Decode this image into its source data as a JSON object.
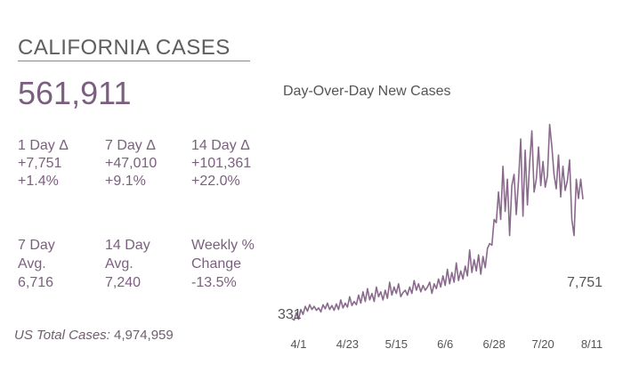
{
  "header": {
    "title": "CALIFORNIA CASES",
    "total_cases": "561,911"
  },
  "stats": {
    "day1": {
      "label": "1 Day Δ",
      "change": "+7,751",
      "pct": "+1.4%"
    },
    "day7": {
      "label": "7 Day Δ",
      "change": "+47,010",
      "pct": "+9.1%"
    },
    "day14": {
      "label": "14 Day Δ",
      "change": "+101,361",
      "pct": "+22.0%"
    },
    "avg7": {
      "label_line1": "7 Day",
      "label_line2": "Avg.",
      "value": "6,716"
    },
    "avg14": {
      "label_line1": "14 Day",
      "label_line2": "Avg.",
      "value": "7,240"
    },
    "weekly": {
      "label_line1": "Weekly %",
      "label_line2": "Change",
      "value": "-13.5%"
    }
  },
  "us_total": {
    "label": "US Total Cases:",
    "value": "4,974,959"
  },
  "colors": {
    "accent": "#7c5f80",
    "line": "#8a6a8c"
  },
  "chart_data": {
    "type": "line",
    "title": "Day-Over-Day New Cases",
    "x_ticks": [
      "4/1",
      "4/23",
      "5/15",
      "6/6",
      "6/28",
      "7/20",
      "8/11"
    ],
    "start_label": "331",
    "end_label": "7,751",
    "x_range": [
      "3/29",
      "8/11"
    ],
    "y_range": [
      0,
      12500
    ],
    "series": [
      {
        "values": [
          331,
          250,
          700,
          300,
          900,
          600,
          1100,
          800,
          1200,
          900,
          1100,
          850,
          1000,
          750,
          1200,
          950,
          1300,
          900,
          1150,
          850,
          1250,
          900,
          1500,
          1000,
          1300,
          1050,
          1700,
          1150,
          1400,
          1200,
          1800,
          1300,
          2000,
          1400,
          2200,
          1500,
          1900,
          1400,
          2300,
          1700,
          2000,
          1500,
          2100,
          1600,
          2600,
          1800,
          2300,
          1900,
          2500,
          1700,
          1950,
          2100,
          1800,
          2300,
          1900,
          2700,
          2100,
          2500,
          2000,
          2400,
          2100,
          2300,
          2600,
          1900,
          2500,
          2200,
          2800,
          2300,
          3000,
          2400,
          3400,
          2500,
          3200,
          2600,
          3800,
          2700,
          3300,
          2800,
          3600,
          3000,
          4600,
          3200,
          4000,
          3300,
          4300,
          3100,
          4200,
          3500,
          4700,
          5000,
          4900,
          6500,
          6300,
          8200,
          6500,
          9800,
          7000,
          9000,
          5500,
          8600,
          9300,
          6800,
          8900,
          11500,
          6700,
          10800,
          7400,
          10000,
          12000,
          8200,
          9000,
          11000,
          8600,
          10100,
          8500,
          9200,
          12400,
          11000,
          9300,
          8400,
          10500,
          7900,
          9800,
          8300,
          8900,
          10200,
          6500,
          5500,
          9000,
          7800,
          9000,
          7751
        ]
      }
    ]
  }
}
